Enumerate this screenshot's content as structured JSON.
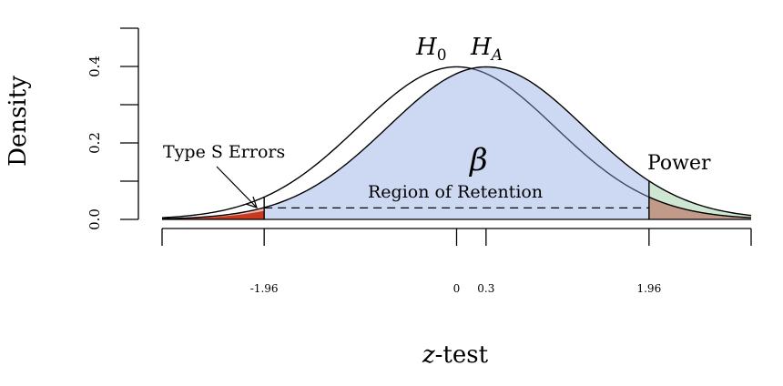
{
  "chart_data": {
    "type": "area",
    "title": "",
    "xlabel": "z-test",
    "xlabel_italic": "z",
    "xlabel_rest": "-test",
    "ylabel": "Density",
    "xlim": [
      -3.0,
      3.0
    ],
    "ylim": [
      0.0,
      0.4
    ],
    "yticks": [
      0.0,
      0.1,
      0.2,
      0.3,
      0.4
    ],
    "ytick_labels": [
      "0.0",
      "",
      "0.2",
      "",
      "0.4"
    ],
    "xticks": [
      -3.0,
      -1.96,
      0,
      0.3,
      1.96,
      3.0
    ],
    "xtick_labels": [
      "",
      "-1.96",
      "0",
      "0.3",
      "1.96",
      ""
    ],
    "critical_values": [
      -1.96,
      1.96
    ],
    "effect_size": 0.3,
    "series": [
      {
        "name": "H0",
        "label_main": "H",
        "label_sub": "0",
        "mean": 0.0,
        "sd": 1.0,
        "color": "#000000"
      },
      {
        "name": "HA",
        "label_main": "H",
        "label_sub": "A",
        "mean": 0.3,
        "sd": 1.0,
        "color": "#000000"
      }
    ],
    "annotations": {
      "type_s": "Type S Errors",
      "beta": "β",
      "retention": "Region of Retention",
      "power": "Power"
    },
    "colors": {
      "retention_fill": "#cdd9f3",
      "power_fill": "#cfe6d3",
      "overlap_fill": "#c29a8a",
      "type_s_fill": "#c9391f",
      "type_s_light": "#eab7ae",
      "h0_in_region": "#3b4a63"
    },
    "grid": false,
    "legend": "none"
  }
}
